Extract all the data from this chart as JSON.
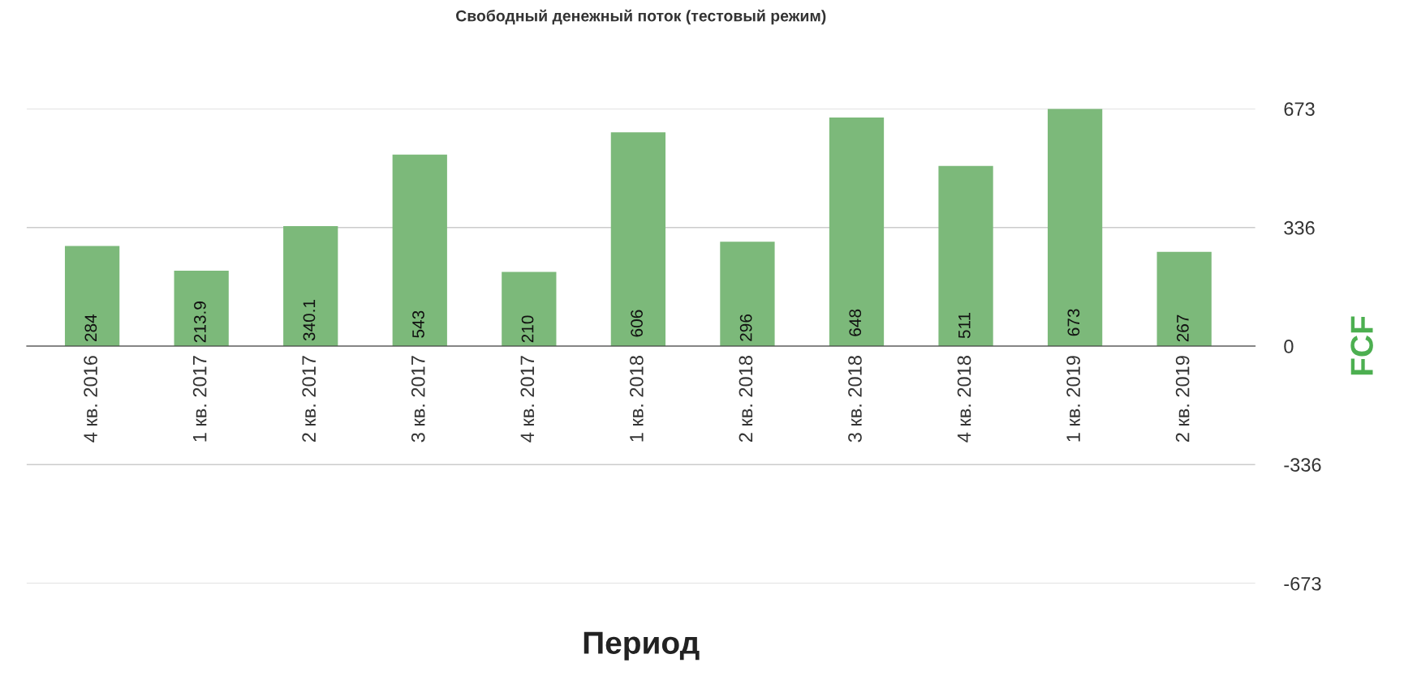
{
  "chart_data": {
    "type": "bar",
    "title": "Свободный денежный поток (тестовый режим)",
    "xlabel": "Период",
    "ylabel": "FCF",
    "categories": [
      "4 кв. 2016",
      "1 кв. 2017",
      "2 кв. 2017",
      "3 кв. 2017",
      "4 кв. 2017",
      "1 кв. 2018",
      "2 кв. 2018",
      "3 кв. 2018",
      "4 кв. 2018",
      "1 кв. 2019",
      "2 кв. 2019"
    ],
    "values": [
      284,
      213.9,
      340.1,
      543,
      210,
      606,
      296,
      648,
      511,
      673,
      267
    ],
    "color": "#7cb97a",
    "data_labels": true,
    "ylim": [
      -673,
      673
    ],
    "yticks": [
      -673,
      -336,
      0,
      336,
      673
    ],
    "grid": "y",
    "legend": false
  }
}
